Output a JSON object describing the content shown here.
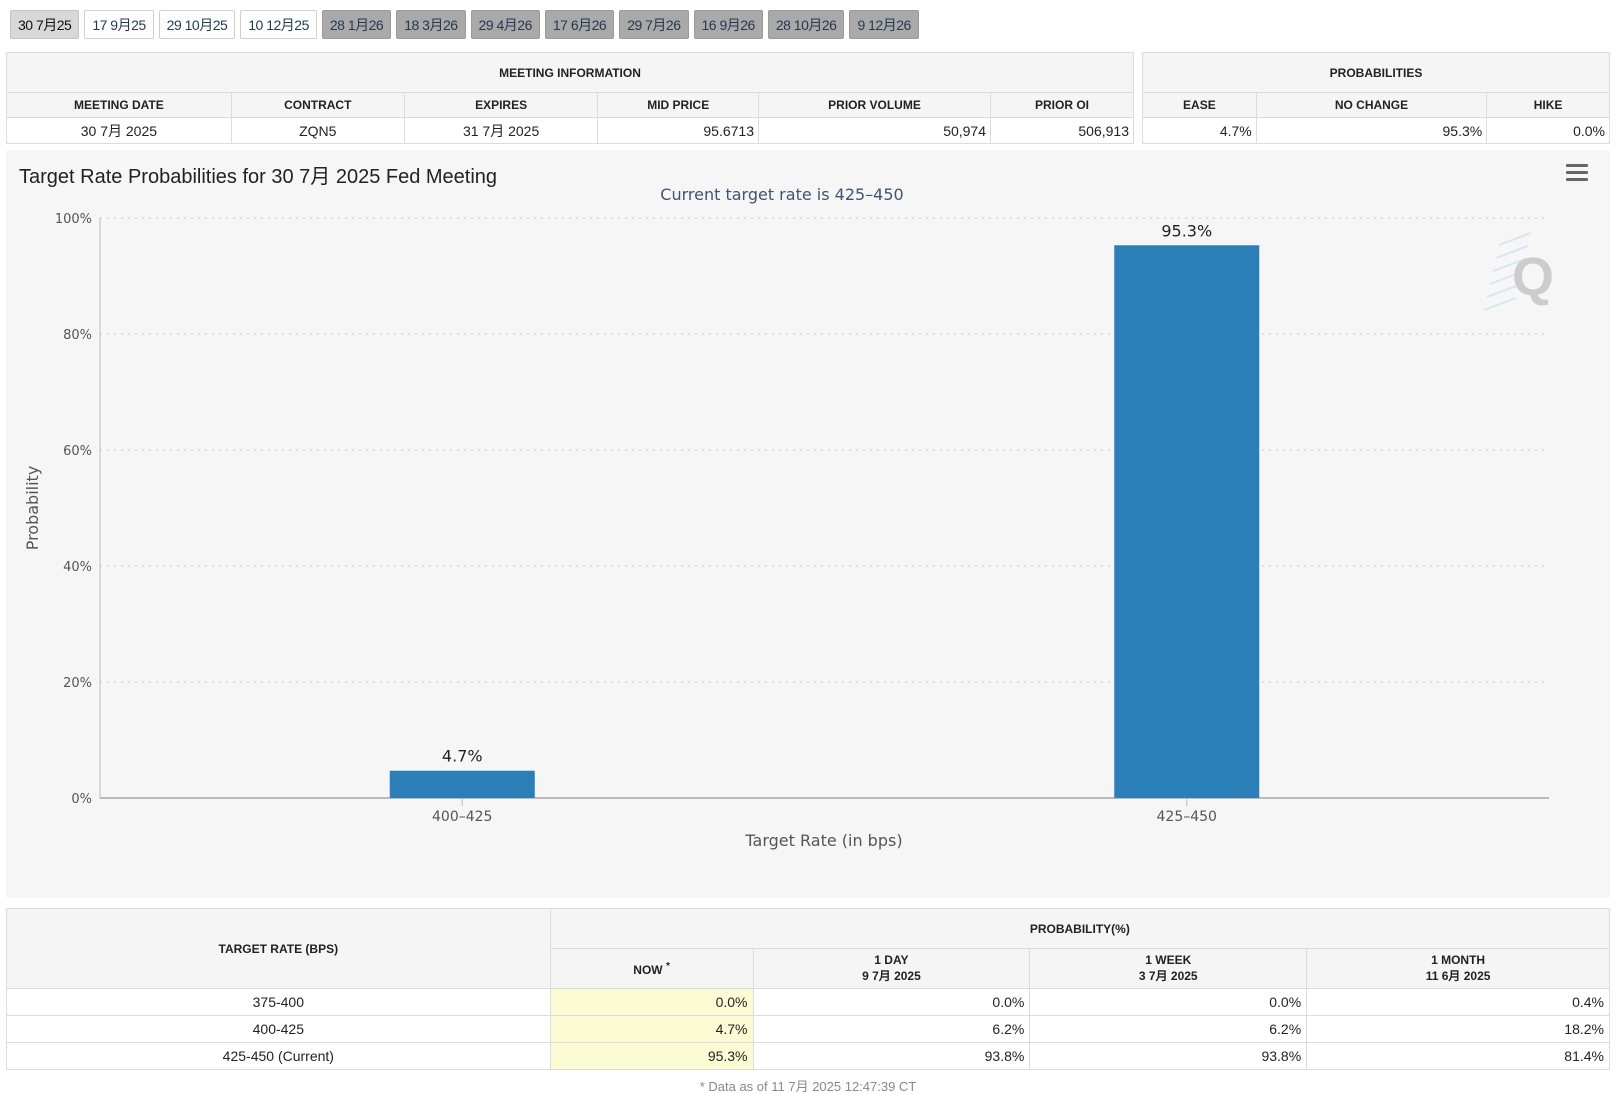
{
  "tabs": [
    {
      "label": "30 7月25",
      "state": "active"
    },
    {
      "label": "17 9月25",
      "state": "light"
    },
    {
      "label": "29 10月25",
      "state": "light"
    },
    {
      "label": "10 12月25",
      "state": "light"
    },
    {
      "label": "28 1月26",
      "state": "dark"
    },
    {
      "label": "18 3月26",
      "state": "dark"
    },
    {
      "label": "29 4月26",
      "state": "dark"
    },
    {
      "label": "17 6月26",
      "state": "dark"
    },
    {
      "label": "29 7月26",
      "state": "dark"
    },
    {
      "label": "16 9月26",
      "state": "dark"
    },
    {
      "label": "28 10月26",
      "state": "dark"
    },
    {
      "label": "9 12月26",
      "state": "dark"
    }
  ],
  "meeting_info": {
    "heading": "MEETING INFORMATION",
    "columns": [
      "MEETING DATE",
      "CONTRACT",
      "EXPIRES",
      "MID PRICE",
      "PRIOR VOLUME",
      "PRIOR OI"
    ],
    "row": [
      "30 7月 2025",
      "ZQN5",
      "31 7月 2025",
      "95.6713",
      "50,974",
      "506,913"
    ]
  },
  "probabilities": {
    "heading": "PROBABILITIES",
    "columns": [
      "EASE",
      "NO CHANGE",
      "HIKE"
    ],
    "row": [
      "4.7%",
      "95.3%",
      "0.0%"
    ]
  },
  "chart": {
    "menu_icon": "hamburger-menu-icon",
    "watermark_icon": "q-logo-icon",
    "bar_color": "#2b7fb8"
  },
  "chart_data": {
    "type": "bar",
    "title": "Target Rate Probabilities for 30 7月 2025 Fed Meeting",
    "subtitle": "Current target rate is 425–450",
    "xlabel": "Target Rate (in bps)",
    "ylabel": "Probability",
    "categories": [
      "400–425",
      "425–450"
    ],
    "values": [
      4.7,
      95.3
    ],
    "data_labels": [
      "4.7%",
      "95.3%"
    ],
    "ylim": [
      0,
      100
    ],
    "yticks": [
      0,
      20,
      40,
      60,
      80,
      100
    ],
    "ytick_labels": [
      "0%",
      "20%",
      "40%",
      "60%",
      "80%",
      "100%"
    ],
    "grid": true
  },
  "rate_table": {
    "col_target": "TARGET RATE (BPS)",
    "group_heading": "PROBABILITY(%)",
    "now_label": "NOW",
    "now_marker": "*",
    "day_label": "1 DAY",
    "day_date": "9 7月 2025",
    "week_label": "1 WEEK",
    "week_date": "3 7月 2025",
    "month_label": "1 MONTH",
    "month_date": "11 6月 2025",
    "rows": [
      [
        "375-400",
        "0.0%",
        "0.0%",
        "0.0%",
        "0.4%"
      ],
      [
        "400-425",
        "4.7%",
        "6.2%",
        "6.2%",
        "18.2%"
      ],
      [
        "425-450 (Current)",
        "95.3%",
        "93.8%",
        "93.8%",
        "81.4%"
      ]
    ]
  },
  "footnote": "* Data as of 11 7月 2025 12:47:39 CT"
}
